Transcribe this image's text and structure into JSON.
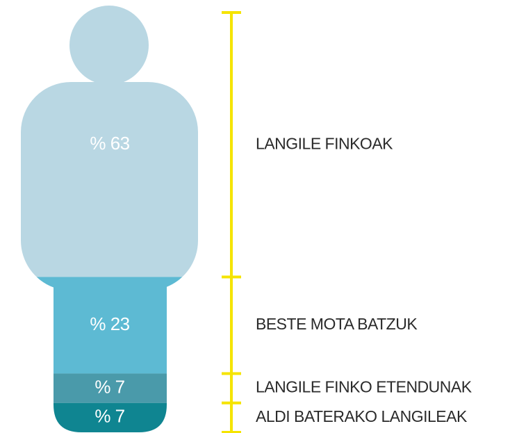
{
  "chart_data": {
    "type": "figure-stack",
    "categories": [
      "LANGILE FINKOAK",
      "BESTE MOTA BATZUK",
      "LANGILE FINKO ETENDUNAK",
      "ALDI BATERAKO LANGILEAK"
    ],
    "values": [
      63,
      23,
      7,
      7
    ],
    "value_labels": [
      "% 63",
      "% 23",
      "% 7",
      "% 7"
    ],
    "colors": [
      "#b9d7e3",
      "#5dbad3",
      "#4a9aaa",
      "#0f8591"
    ],
    "scale_color": "#f5e400"
  }
}
